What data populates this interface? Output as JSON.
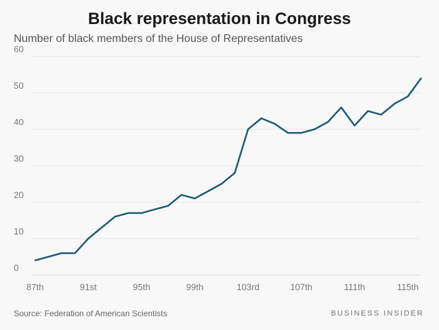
{
  "chart_data": {
    "type": "line",
    "title": "Black representation in Congress",
    "subtitle": "Number of black members of the House of Representatives",
    "x": [
      87,
      88,
      89,
      90,
      91,
      92,
      93,
      94,
      95,
      96,
      97,
      98,
      99,
      100,
      101,
      102,
      103,
      104,
      105,
      106,
      107,
      108,
      109,
      110,
      111,
      112,
      113,
      114,
      115,
      116
    ],
    "values": [
      4,
      5,
      6,
      6,
      10,
      13,
      16,
      17,
      17,
      18,
      19,
      22,
      21,
      23,
      25,
      28,
      40,
      43,
      41.5,
      39,
      39,
      40,
      42,
      46,
      41,
      45,
      44,
      47,
      49,
      54
    ],
    "x_ticks": [
      {
        "x": 87,
        "label": "87th"
      },
      {
        "x": 91,
        "label": "91st"
      },
      {
        "x": 95,
        "label": "95th"
      },
      {
        "x": 99,
        "label": "99th"
      },
      {
        "x": 103,
        "label": "103rd"
      },
      {
        "x": 107,
        "label": "107th"
      },
      {
        "x": 111,
        "label": "111th"
      },
      {
        "x": 115,
        "label": "115th"
      }
    ],
    "y_ticks": [
      0,
      10,
      20,
      30,
      40,
      50,
      60
    ],
    "ylim": [
      0,
      60
    ],
    "xlim": [
      87,
      116
    ],
    "grid": true,
    "line_color": "#1f5a74"
  },
  "footer": {
    "source": "Source: Federation of American Scientists",
    "brand": "BUSINESS INSIDER"
  }
}
